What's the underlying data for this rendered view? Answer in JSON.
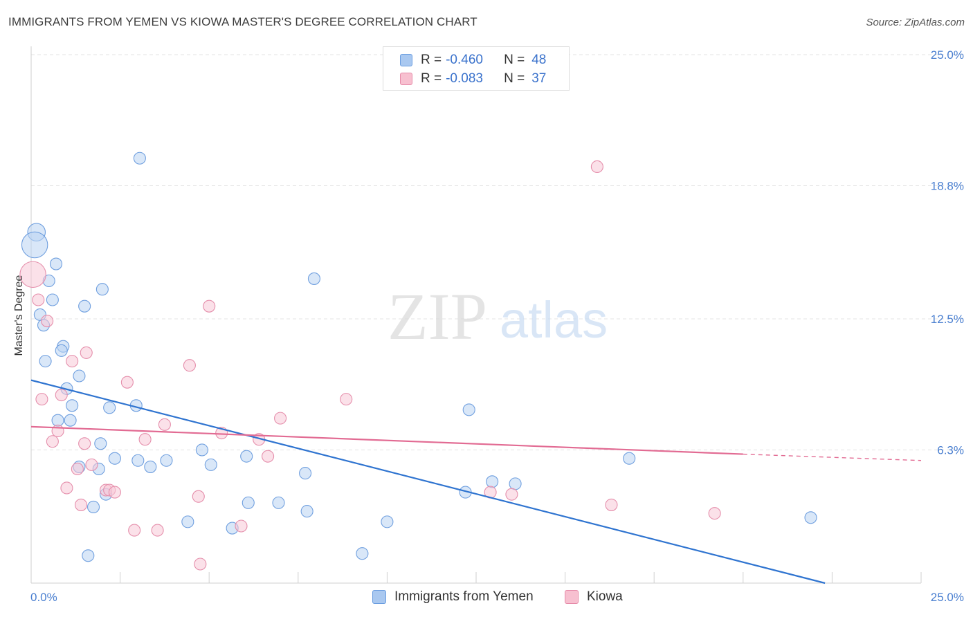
{
  "header": {
    "title": "IMMIGRANTS FROM YEMEN VS KIOWA MASTER'S DEGREE CORRELATION CHART",
    "source": "Source: ZipAtlas.com"
  },
  "watermark": {
    "zip": "ZIP",
    "atlas": "atlas"
  },
  "legend": {
    "rows": [
      {
        "r_label": "R =",
        "r_value": "-0.460",
        "n_label": "N =",
        "n_value": "48",
        "color": "#a9c8f0",
        "border": "#6a9de0"
      },
      {
        "r_label": "R =",
        "r_value": "-0.083",
        "n_label": "N =",
        "n_value": "37",
        "color": "#f7c0d0",
        "border": "#e68aa8"
      }
    ]
  },
  "bottom_legend": {
    "yemen": "Immigrants from Yemen",
    "kiowa": "Kiowa"
  },
  "colors": {
    "yemen_fill": "#b9d3f3",
    "yemen_stroke": "#6f9fdf",
    "yemen_line": "#2f74d0",
    "kiowa_fill": "#f8c9d7",
    "kiowa_stroke": "#e58eab",
    "kiowa_line": "#e26b93",
    "grid": "#e3e3e3",
    "tick_text": "#4a7fd0"
  },
  "chart_data": {
    "type": "scatter",
    "title": "IMMIGRANTS FROM YEMEN VS KIOWA MASTER'S DEGREE CORRELATION CHART",
    "xlabel": "",
    "ylabel": "Master's Degree",
    "xlim": [
      0,
      25
    ],
    "ylim": [
      0,
      25
    ],
    "x_tick_labels": [
      "0.0%",
      "25.0%"
    ],
    "y_ticks": [
      6.3,
      12.5,
      18.8,
      25.0
    ],
    "y_tick_labels": [
      "6.3%",
      "12.5%",
      "18.8%",
      "25.0%"
    ],
    "grid": true,
    "legend_position": "top-center",
    "series": [
      {
        "name": "Immigrants from Yemen",
        "r": -0.46,
        "n": 48,
        "trend": {
          "x0": 0.0,
          "y0": 9.6,
          "x1": 22.3,
          "y1": 0.0
        },
        "points": [
          [
            0.15,
            16.6,
            1.5
          ],
          [
            0.1,
            16.0,
            2.2
          ],
          [
            0.7,
            15.1,
            1
          ],
          [
            0.5,
            14.3,
            1
          ],
          [
            0.6,
            13.4,
            1
          ],
          [
            2.0,
            13.9,
            1
          ],
          [
            1.5,
            13.1,
            1
          ],
          [
            0.25,
            12.7,
            1
          ],
          [
            0.35,
            12.2,
            1
          ],
          [
            0.9,
            11.2,
            1
          ],
          [
            0.85,
            11.0,
            1
          ],
          [
            0.4,
            10.5,
            1
          ],
          [
            1.35,
            9.8,
            1
          ],
          [
            1.0,
            9.2,
            1
          ],
          [
            1.15,
            8.4,
            1
          ],
          [
            2.2,
            8.3,
            1
          ],
          [
            2.95,
            8.4,
            1
          ],
          [
            0.75,
            7.7,
            1
          ],
          [
            1.1,
            7.7,
            1
          ],
          [
            1.95,
            6.6,
            1
          ],
          [
            2.35,
            5.9,
            1
          ],
          [
            3.0,
            5.8,
            1
          ],
          [
            3.35,
            5.5,
            1
          ],
          [
            3.8,
            5.8,
            1
          ],
          [
            1.35,
            5.5,
            1
          ],
          [
            1.9,
            5.4,
            1
          ],
          [
            4.8,
            6.3,
            1
          ],
          [
            5.05,
            5.6,
            1
          ],
          [
            6.05,
            6.0,
            1
          ],
          [
            7.7,
            5.2,
            1
          ],
          [
            3.05,
            20.1,
            1
          ],
          [
            7.95,
            14.4,
            1
          ],
          [
            12.3,
            8.2,
            1
          ],
          [
            12.95,
            4.8,
            1
          ],
          [
            16.8,
            5.9,
            1
          ],
          [
            2.1,
            4.2,
            1
          ],
          [
            1.75,
            3.6,
            1
          ],
          [
            4.4,
            2.9,
            1
          ],
          [
            5.65,
            2.6,
            1
          ],
          [
            6.1,
            3.8,
            1
          ],
          [
            6.95,
            3.8,
            1
          ],
          [
            7.75,
            3.4,
            1
          ],
          [
            10.0,
            2.9,
            1
          ],
          [
            12.2,
            4.3,
            1
          ],
          [
            9.3,
            1.4,
            1
          ],
          [
            1.6,
            1.3,
            1
          ],
          [
            21.9,
            3.1,
            1
          ],
          [
            13.6,
            4.7,
            1
          ]
        ]
      },
      {
        "name": "Kiowa",
        "r": -0.083,
        "n": 37,
        "trend": {
          "x0": 0.0,
          "y0": 7.4,
          "x1": 20.0,
          "y1": 6.1,
          "dash_x1": 25.0,
          "dash_y1": 5.8
        },
        "points": [
          [
            0.05,
            14.6,
            2.2
          ],
          [
            0.2,
            13.4,
            1
          ],
          [
            0.45,
            12.4,
            1
          ],
          [
            1.55,
            10.9,
            1
          ],
          [
            1.15,
            10.5,
            1
          ],
          [
            4.45,
            10.3,
            1
          ],
          [
            5.0,
            13.1,
            1
          ],
          [
            2.7,
            9.5,
            1
          ],
          [
            0.3,
            8.7,
            1
          ],
          [
            0.85,
            8.9,
            1
          ],
          [
            8.85,
            8.7,
            1
          ],
          [
            7.0,
            7.8,
            1
          ],
          [
            3.75,
            7.5,
            1
          ],
          [
            5.35,
            7.1,
            1
          ],
          [
            0.75,
            7.2,
            1
          ],
          [
            0.6,
            6.7,
            1
          ],
          [
            1.5,
            6.6,
            1
          ],
          [
            3.2,
            6.8,
            1
          ],
          [
            6.4,
            6.8,
            1
          ],
          [
            6.65,
            6.0,
            1
          ],
          [
            1.7,
            5.6,
            1
          ],
          [
            1.3,
            5.4,
            1
          ],
          [
            1.0,
            4.5,
            1
          ],
          [
            2.1,
            4.4,
            1
          ],
          [
            2.2,
            4.4,
            1
          ],
          [
            2.35,
            4.3,
            1
          ],
          [
            1.4,
            3.7,
            1
          ],
          [
            4.7,
            4.1,
            1
          ],
          [
            12.9,
            4.3,
            1
          ],
          [
            13.5,
            4.2,
            1
          ],
          [
            16.3,
            3.7,
            1
          ],
          [
            19.2,
            3.3,
            1
          ],
          [
            15.9,
            19.7,
            1
          ],
          [
            2.9,
            2.5,
            1
          ],
          [
            3.55,
            2.5,
            1
          ],
          [
            5.9,
            2.7,
            1
          ],
          [
            4.75,
            0.9,
            1
          ]
        ]
      }
    ]
  }
}
